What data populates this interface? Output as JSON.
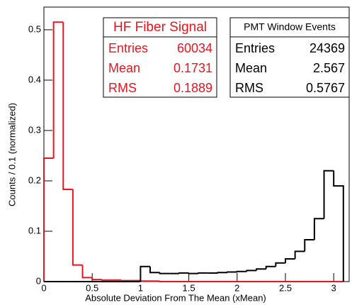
{
  "chart_data": {
    "type": "histogram",
    "xlabel": "Absolute Deviation From The Mean (xMean)",
    "ylabel": "Counts / 0.1 (normalized)",
    "bins": [
      0,
      0.1,
      0.2,
      0.3,
      0.4,
      0.5,
      0.6,
      0.7,
      0.8,
      0.9,
      1.0,
      1.1,
      1.2,
      1.3,
      1.4,
      1.5,
      1.6,
      1.7,
      1.8,
      1.9,
      2.0,
      2.1,
      2.2,
      2.3,
      2.4,
      2.5,
      2.6,
      2.7,
      2.8,
      2.9,
      3.0,
      3.1
    ],
    "series": [
      {
        "name": "HF Fiber Signal",
        "color": "#e8141e",
        "values": [
          0.245,
          0.515,
          0.183,
          0.033,
          0.008,
          0.004,
          0.003,
          0.003,
          0.002,
          0.002,
          0.001,
          0.001,
          0,
          0,
          0,
          0,
          0,
          0,
          0,
          0,
          0,
          0,
          0,
          0,
          0,
          0,
          0,
          0,
          0,
          0,
          0
        ]
      },
      {
        "name": "PMT Window Events",
        "color": "#000000",
        "values": [
          0,
          0,
          0,
          0,
          0,
          0,
          0,
          0,
          0,
          0,
          0.03,
          0.018,
          0.016,
          0.016,
          0.017,
          0.016,
          0.017,
          0.017,
          0.018,
          0.019,
          0.02,
          0.022,
          0.025,
          0.03,
          0.037,
          0.045,
          0.06,
          0.083,
          0.125,
          0.22,
          0.19
        ]
      }
    ],
    "stats": [
      {
        "rows": [
          {
            "label": "Entries",
            "value": 60034
          },
          {
            "label": "Mean",
            "value": 0.1731
          },
          {
            "label": "RMS",
            "value": 0.1889
          }
        ]
      },
      {
        "rows": [
          {
            "label": "Entries",
            "value": 24369
          },
          {
            "label": "Mean",
            "value": 2.567
          },
          {
            "label": "RMS",
            "value": 0.5767
          }
        ]
      }
    ],
    "xlim": [
      0,
      3.16
    ],
    "ylim": [
      0,
      0.545
    ],
    "xticks": [
      0,
      0.5,
      1,
      1.5,
      2,
      2.5,
      3
    ],
    "yticks": [
      0,
      0.1,
      0.2,
      0.3,
      0.4,
      0.5
    ]
  }
}
